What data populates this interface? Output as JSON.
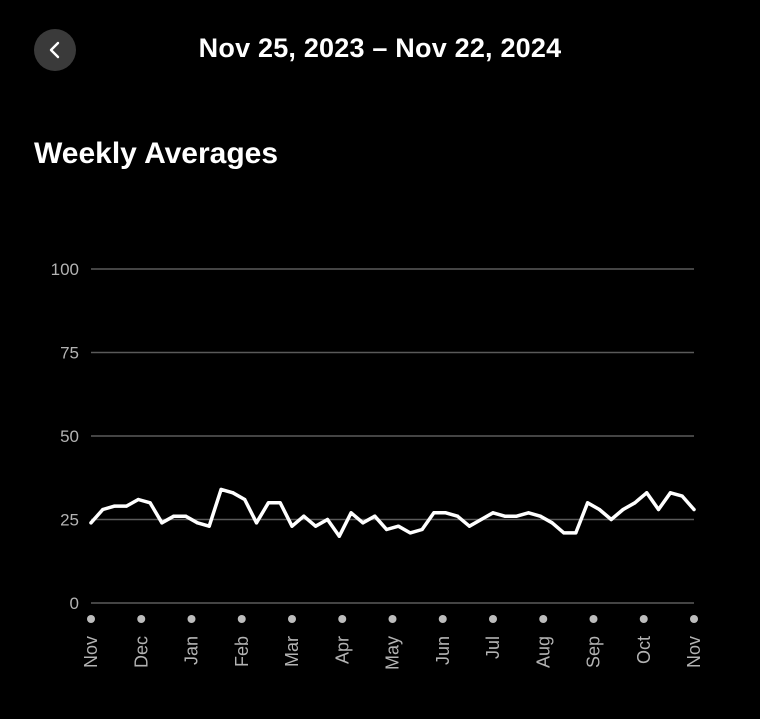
{
  "header": {
    "title": "Nov 25, 2023 – Nov 22, 2024",
    "back_icon": "chevron-left-icon"
  },
  "section": {
    "title": "Weekly Averages"
  },
  "colors": {
    "background": "#000000",
    "line": "#ffffff",
    "grid": "#5a5a5a",
    "tick_text": "#b3b3b3",
    "dot": "#bdbdbd",
    "back_button_bg": "#3a3a3a"
  },
  "chart_data": {
    "type": "line",
    "title": "Weekly Averages",
    "xlabel": "",
    "ylabel": "",
    "ylim": [
      0,
      100
    ],
    "y_ticks": [
      0,
      25,
      50,
      75,
      100
    ],
    "grid": true,
    "x_ticks": [
      "Nov",
      "Dec",
      "Jan",
      "Feb",
      "Mar",
      "Apr",
      "May",
      "Jun",
      "Jul",
      "Aug",
      "Sep",
      "Oct",
      "Nov"
    ],
    "series": [
      {
        "values": [
          24,
          28,
          29,
          29,
          31,
          30,
          24,
          26,
          26,
          24,
          23,
          34,
          33,
          31,
          24,
          30,
          30,
          23,
          26,
          23,
          25,
          20,
          27,
          24,
          26,
          22,
          23,
          21,
          22,
          27,
          27,
          26,
          23,
          25,
          27,
          26,
          26,
          27,
          26,
          24,
          21,
          21,
          30,
          28,
          25,
          28,
          30,
          33,
          28,
          33,
          32,
          28
        ]
      }
    ]
  }
}
